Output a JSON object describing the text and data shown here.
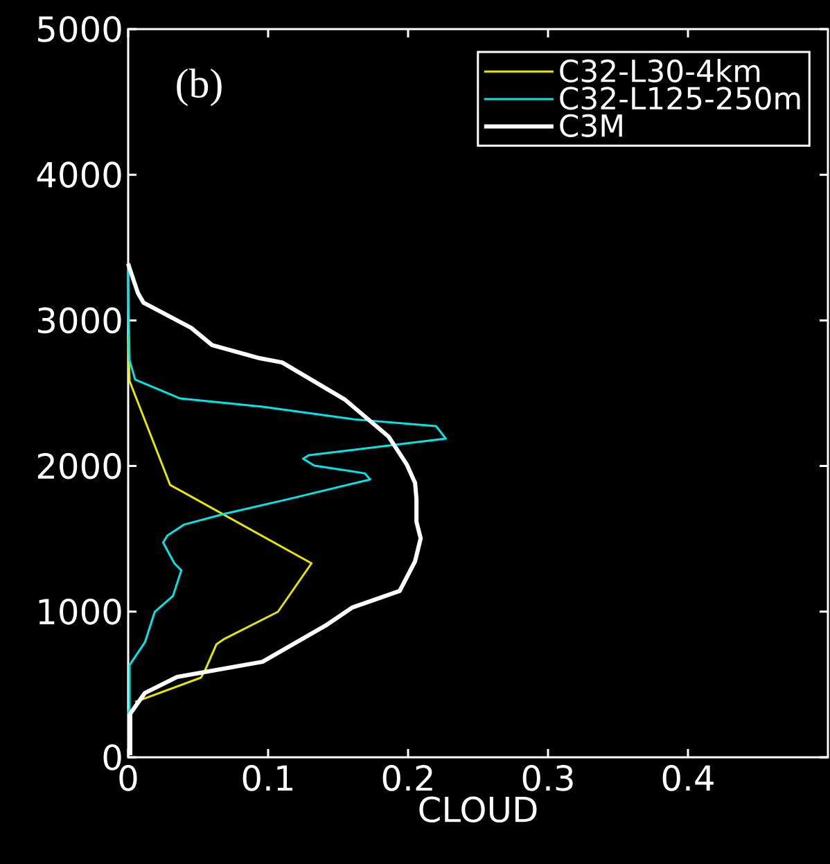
{
  "chart_data": {
    "type": "line",
    "xlabel": "CLOUD",
    "annotations": [
      "(b)"
    ],
    "xlim": [
      0,
      0.5
    ],
    "ylim": [
      0,
      5000
    ],
    "xticks": [
      0,
      0.1,
      0.2,
      0.3,
      0.4
    ],
    "yticks": [
      0,
      1000,
      2000,
      3000,
      4000,
      5000
    ],
    "grid": false,
    "legend": "top right",
    "marker": "none",
    "line_style": "solid",
    "series": [
      {
        "name": "C32-L30-4km",
        "color": "#e6e600",
        "x": [
          0.005,
          0.052,
          0.055,
          0.063,
          0.068,
          0.107,
          0.131,
          0.03,
          0.001,
          0.0
        ],
        "values": [
          380,
          547,
          599,
          775,
          809,
          999,
          1332,
          1870,
          2583,
          2900
        ]
      },
      {
        "name": "C32-L125-250m",
        "color": "#00e5e5",
        "x": [
          0.0,
          0.001,
          0.001,
          0.012,
          0.019,
          0.032,
          0.038,
          0.033,
          0.025,
          0.028,
          0.04,
          0.068,
          0.115,
          0.173,
          0.169,
          0.133,
          0.125,
          0.129,
          0.227,
          0.22,
          0.161,
          0.096,
          0.037,
          0.005,
          0.001,
          0.0,
          0.0
        ],
        "values": [
          300,
          333,
          633,
          790,
          999,
          1108,
          1284,
          1332,
          1475,
          1522,
          1598,
          1670,
          1774,
          1908,
          1950,
          2003,
          2050,
          2074,
          2188,
          2274,
          2321,
          2407,
          2464,
          2593,
          2726,
          3235,
          3344
        ]
      },
      {
        "name": "C3M",
        "color": "#ffffff",
        "x": [
          0.0015,
          0.0015,
          0.012,
          0.035,
          0.096,
          0.141,
          0.16,
          0.194,
          0.205,
          0.209,
          0.206,
          0.206,
          0.205,
          0.199,
          0.186,
          0.155,
          0.11,
          0.094,
          0.06,
          0.045,
          0.011,
          0.007,
          0.001,
          0.0
        ],
        "values": [
          14,
          300,
          442,
          552,
          656,
          904,
          1028,
          1142,
          1346,
          1503,
          1617,
          1774,
          1884,
          2012,
          2203,
          2455,
          2711,
          2740,
          2830,
          2949,
          3121,
          3187,
          3358,
          3390
        ]
      }
    ]
  }
}
